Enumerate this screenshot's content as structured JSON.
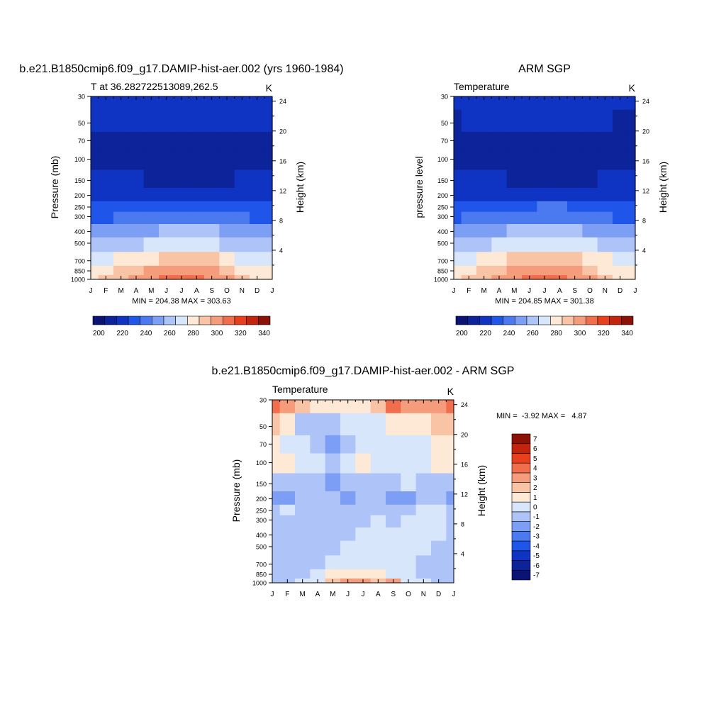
{
  "months": [
    "J",
    "F",
    "M",
    "A",
    "M",
    "J",
    "J",
    "A",
    "S",
    "O",
    "N",
    "D",
    "J"
  ],
  "palettes": {
    "temperature": [
      "#0a1474",
      "#0c239a",
      "#0f34c4",
      "#1f55e8",
      "#4a79f0",
      "#7c9ef4",
      "#aec4f8",
      "#d8e6fb",
      "#fde9d6",
      "#f9c3a5",
      "#f59c7d",
      "#f06e4c",
      "#e8401c",
      "#c3240d",
      "#8c1207"
    ],
    "difference": [
      "#0a1474",
      "#0c239a",
      "#0f34c4",
      "#1f55e8",
      "#4a79f0",
      "#7c9ef4",
      "#aec4f8",
      "#d8e6fb",
      "#fde9d6",
      "#f9c3a5",
      "#f59c7d",
      "#f06e4c",
      "#e8401c",
      "#c3240d",
      "#8c1207"
    ]
  },
  "panels": [
    {
      "id": "model",
      "main_title": "b.e21.B1850cmip6.f09_g17.DAMIP-hist-aer.002 (yrs 1960-1984)",
      "left_string": "T at 36.282722513089,262.5",
      "right_string": "K",
      "ylabel": "Pressure (mb)",
      "y2label": "Height (km)",
      "minmax": "MIN = 204.38 MAX = 303.63"
    },
    {
      "id": "obs",
      "main_title": "ARM SGP",
      "left_string": "Temperature",
      "right_string": "K",
      "ylabel": "pressure level",
      "y2label": "Height (km)",
      "minmax": "MIN = 204.85 MAX = 301.38"
    },
    {
      "id": "diff",
      "main_title": "b.e21.B1850cmip6.f09_g17.DAMIP-hist-aer.002 - ARM SGP",
      "left_string": "Temperature",
      "right_string": "K",
      "ylabel": "Pressure (mb)",
      "y2label": "Height (km)",
      "minmax": "MIN =  -3.92 MAX =   4.87"
    }
  ],
  "chart_data": [
    {
      "type": "heatmap",
      "title": "b.e21.B1850cmip6.f09_g17.DAMIP-hist-aer.002 (yrs 1960-1984)",
      "xlabel": "",
      "ylabel": "Pressure (mb)",
      "y2label": "Height (km)",
      "x_ticks": [
        "J",
        "F",
        "M",
        "A",
        "M",
        "J",
        "J",
        "A",
        "S",
        "O",
        "N",
        "D",
        "J"
      ],
      "y_ticks": [
        30,
        50,
        70,
        100,
        150,
        200,
        250,
        300,
        400,
        500,
        700,
        850,
        1000
      ],
      "y2_ticks": [
        4,
        8,
        12,
        16,
        20,
        24
      ],
      "y_scale": "log",
      "y_reversed": true,
      "colorbar_levels": [
        200,
        210,
        220,
        230,
        240,
        250,
        260,
        270,
        280,
        290,
        300,
        310,
        320,
        330,
        340
      ],
      "colorbar_labels": [
        200,
        220,
        240,
        260,
        280,
        300,
        320,
        340
      ],
      "min": 204.38,
      "max": 303.63,
      "levels": [
        30,
        50,
        70,
        100,
        150,
        200,
        250,
        300,
        400,
        500,
        700,
        850,
        1000
      ],
      "values": [
        [
          212,
          212,
          212,
          213,
          215,
          217,
          218,
          217,
          215,
          213,
          212,
          212,
          212
        ],
        [
          210,
          210,
          210,
          211,
          212,
          213,
          213,
          213,
          212,
          211,
          210,
          210,
          210
        ],
        [
          208,
          207,
          206,
          206,
          206,
          207,
          207,
          207,
          206,
          206,
          207,
          208,
          208
        ],
        [
          209,
          208,
          207,
          205,
          205,
          205,
          205,
          205,
          205,
          206,
          208,
          209,
          209
        ],
        [
          213,
          212,
          211,
          210,
          208,
          207,
          207,
          207,
          207,
          208,
          210,
          212,
          213
        ],
        [
          216,
          216,
          215,
          214,
          213,
          213,
          213,
          213,
          213,
          214,
          215,
          216,
          216
        ],
        [
          221,
          221,
          222,
          224,
          226,
          228,
          229,
          229,
          227,
          225,
          222,
          221,
          221
        ],
        [
          228,
          229,
          231,
          233,
          235,
          237,
          238,
          238,
          236,
          233,
          230,
          228,
          228
        ],
        [
          240,
          241,
          244,
          246,
          249,
          252,
          254,
          253,
          251,
          247,
          243,
          240,
          240
        ],
        [
          251,
          252,
          255,
          258,
          262,
          265,
          267,
          266,
          263,
          259,
          254,
          251,
          251
        ],
        [
          264,
          266,
          270,
          274,
          279,
          283,
          285,
          284,
          280,
          274,
          268,
          264,
          264
        ],
        [
          273,
          275,
          280,
          285,
          291,
          296,
          298,
          297,
          292,
          285,
          278,
          273,
          273
        ],
        [
          278,
          280,
          285,
          291,
          297,
          302,
          303,
          302,
          297,
          290,
          282,
          278,
          278
        ]
      ]
    },
    {
      "type": "heatmap",
      "title": "ARM SGP",
      "xlabel": "",
      "ylabel": "pressure level",
      "y2label": "Height (km)",
      "x_ticks": [
        "J",
        "F",
        "M",
        "A",
        "M",
        "J",
        "J",
        "A",
        "S",
        "O",
        "N",
        "D",
        "J"
      ],
      "y_ticks": [
        30,
        50,
        70,
        100,
        150,
        200,
        250,
        300,
        400,
        500,
        700,
        850,
        1000
      ],
      "y2_ticks": [
        4,
        8,
        12,
        16,
        20,
        24
      ],
      "y_scale": "log",
      "y_reversed": true,
      "colorbar_levels": [
        200,
        210,
        220,
        230,
        240,
        250,
        260,
        270,
        280,
        290,
        300,
        310,
        320,
        330,
        340
      ],
      "colorbar_labels": [
        200,
        220,
        240,
        260,
        280,
        300,
        320,
        340
      ],
      "min": 204.85,
      "max": 301.38,
      "levels": [
        30,
        50,
        70,
        100,
        150,
        200,
        250,
        300,
        400,
        500,
        700,
        850,
        1000
      ],
      "values": [
        [
          212,
          212,
          212,
          213,
          214,
          216,
          217,
          216,
          214,
          213,
          212,
          212,
          212
        ],
        [
          209,
          210,
          210,
          211,
          212,
          213,
          213,
          213,
          212,
          211,
          210,
          209,
          209
        ],
        [
          207,
          207,
          207,
          206,
          206,
          207,
          207,
          207,
          207,
          206,
          206,
          207,
          207
        ],
        [
          208,
          207,
          206,
          206,
          206,
          206,
          206,
          206,
          206,
          206,
          207,
          207,
          208
        ],
        [
          212,
          211,
          210,
          210,
          209,
          208,
          208,
          208,
          208,
          209,
          210,
          211,
          212
        ],
        [
          216,
          216,
          215,
          215,
          214,
          214,
          214,
          214,
          214,
          215,
          215,
          216,
          216
        ],
        [
          222,
          222,
          223,
          225,
          227,
          229,
          230,
          230,
          228,
          226,
          223,
          222,
          222
        ],
        [
          229,
          230,
          232,
          234,
          236,
          238,
          239,
          239,
          237,
          234,
          231,
          229,
          229
        ],
        [
          241,
          242,
          245,
          248,
          251,
          254,
          255,
          255,
          252,
          248,
          244,
          241,
          241
        ],
        [
          253,
          254,
          257,
          261,
          264,
          267,
          269,
          268,
          265,
          261,
          256,
          253,
          253
        ],
        [
          266,
          268,
          272,
          276,
          280,
          284,
          286,
          285,
          281,
          276,
          270,
          266,
          266
        ],
        [
          274,
          276,
          281,
          286,
          291,
          295,
          297,
          296,
          292,
          286,
          279,
          274,
          274
        ],
        [
          279,
          281,
          286,
          291,
          296,
          300,
          301,
          300,
          297,
          291,
          284,
          279,
          279
        ]
      ]
    },
    {
      "type": "heatmap",
      "title": "b.e21.B1850cmip6.f09_g17.DAMIP-hist-aer.002 - ARM SGP",
      "xlabel": "",
      "ylabel": "Pressure (mb)",
      "y2label": "Height (km)",
      "x_ticks": [
        "J",
        "F",
        "M",
        "A",
        "M",
        "J",
        "J",
        "A",
        "S",
        "O",
        "N",
        "D",
        "J"
      ],
      "y_ticks": [
        30,
        50,
        70,
        100,
        150,
        200,
        250,
        300,
        400,
        500,
        700,
        850,
        1000
      ],
      "y2_ticks": [
        4,
        8,
        12,
        16,
        20,
        24
      ],
      "y_scale": "log",
      "y_reversed": true,
      "colorbar_levels": [
        -7,
        -6,
        -5,
        -4,
        -3,
        -2,
        -1,
        0,
        1,
        2,
        3,
        4,
        5,
        6,
        7
      ],
      "colorbar_labels": [
        -7,
        -6,
        -5,
        -4,
        -3,
        -2,
        -1,
        0,
        1,
        2,
        3,
        4,
        5,
        6,
        7
      ],
      "min": -3.92,
      "max": 4.87,
      "levels": [
        30,
        50,
        70,
        100,
        150,
        200,
        250,
        300,
        400,
        500,
        700,
        850,
        1000
      ],
      "values": [
        [
          3.5,
          2.5,
          1.5,
          0.5,
          0.5,
          0.5,
          0.5,
          1.5,
          3.5,
          2.5,
          2.0,
          2.0,
          3.5
        ],
        [
          1.0,
          0.5,
          -1.5,
          -1.5,
          -1.5,
          -1.0,
          -1.0,
          -0.5,
          0.5,
          0.5,
          0.5,
          1.0,
          1.0
        ],
        [
          0.5,
          -0.5,
          -1.0,
          -1.5,
          -3.0,
          -2.0,
          -0.5,
          -1.0,
          -1.0,
          -0.5,
          -0.5,
          0.5,
          0.5
        ],
        [
          0.5,
          0.5,
          -0.5,
          -0.5,
          -1.5,
          -1.0,
          0.5,
          -0.5,
          -0.5,
          -1.0,
          -0.5,
          0.5,
          0.5
        ],
        [
          -1.5,
          -1.5,
          -1.5,
          -2.0,
          -3.0,
          -2.0,
          -1.5,
          -1.5,
          -2.0,
          -1.0,
          -1.5,
          -1.5,
          -1.5
        ],
        [
          -3.0,
          -2.5,
          -2.0,
          -2.0,
          -1.5,
          -2.5,
          -2.0,
          -2.0,
          -3.0,
          -2.5,
          -1.5,
          -2.0,
          -3.0
        ],
        [
          -1.5,
          -0.5,
          -1.5,
          -1.5,
          -2.0,
          -1.5,
          -1.5,
          -1.5,
          -1.5,
          -1.5,
          -0.5,
          -1.0,
          -1.5
        ],
        [
          -1.5,
          -1.5,
          -1.5,
          -1.5,
          -1.5,
          -1.5,
          -1.5,
          -1.0,
          -1.5,
          -0.5,
          -0.5,
          -1.0,
          -1.5
        ],
        [
          -1.5,
          -1.5,
          -1.5,
          -1.5,
          -1.5,
          -1.5,
          -1.0,
          -0.5,
          -0.5,
          -0.5,
          -1.0,
          -1.0,
          -1.5
        ],
        [
          -1.5,
          -1.5,
          -1.5,
          -1.5,
          -1.5,
          -1.0,
          -0.5,
          -0.5,
          -0.5,
          -0.5,
          -1.0,
          -1.5,
          -1.5
        ],
        [
          -1.5,
          -1.5,
          -1.5,
          -1.5,
          -1.0,
          -0.5,
          -0.5,
          -0.5,
          -0.5,
          -1.0,
          -1.5,
          -1.5,
          -1.5
        ],
        [
          -1.5,
          -1.5,
          -1.5,
          -1.0,
          0.5,
          0.5,
          0.5,
          0.5,
          -0.5,
          -1.0,
          -1.5,
          -1.5,
          -1.5
        ],
        [
          -1.5,
          -1.5,
          -1.0,
          -0.5,
          1.0,
          2.5,
          2.0,
          1.5,
          2.0,
          -0.5,
          -1.0,
          -1.5,
          -1.5
        ]
      ]
    }
  ]
}
